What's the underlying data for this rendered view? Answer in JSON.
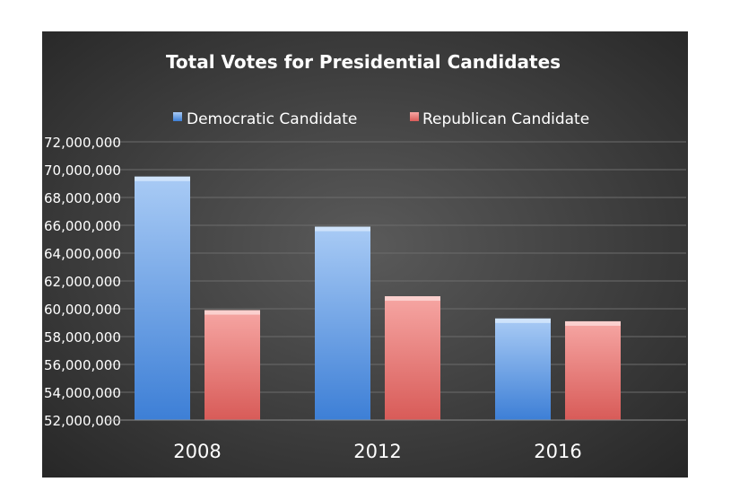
{
  "chart_data": {
    "type": "bar",
    "title": "Total Votes for Presidential Candidates",
    "categories": [
      "2008",
      "2012",
      "2016"
    ],
    "series": [
      {
        "name": "Democratic Candidate",
        "values": [
          69500000,
          65900000,
          59300000
        ]
      },
      {
        "name": "Republican Candidate",
        "values": [
          59900000,
          60900000,
          59100000
        ]
      }
    ],
    "ylim": [
      52000000,
      72000000
    ],
    "yticks": [
      52000000,
      54000000,
      56000000,
      58000000,
      60000000,
      62000000,
      64000000,
      66000000,
      68000000,
      70000000,
      72000000
    ],
    "ytick_labels": [
      "52,000,000",
      "54,000,000",
      "56,000,000",
      "58,000,000",
      "60,000,000",
      "62,000,000",
      "64,000,000",
      "66,000,000",
      "68,000,000",
      "70,000,000",
      "72,000,000"
    ],
    "grid": true,
    "legend_position": "top"
  },
  "colors": {
    "background_center": "#5a5a5a",
    "background_edge": "#272727",
    "grid": "#6c6c6c",
    "text": "#ffffff",
    "series": [
      {
        "light": "#a9cbf5",
        "dark": "#3d7fd6",
        "top": "#cfe3fb"
      },
      {
        "light": "#f6a6a3",
        "dark": "#d85b58",
        "top": "#fbd0ce"
      }
    ]
  }
}
